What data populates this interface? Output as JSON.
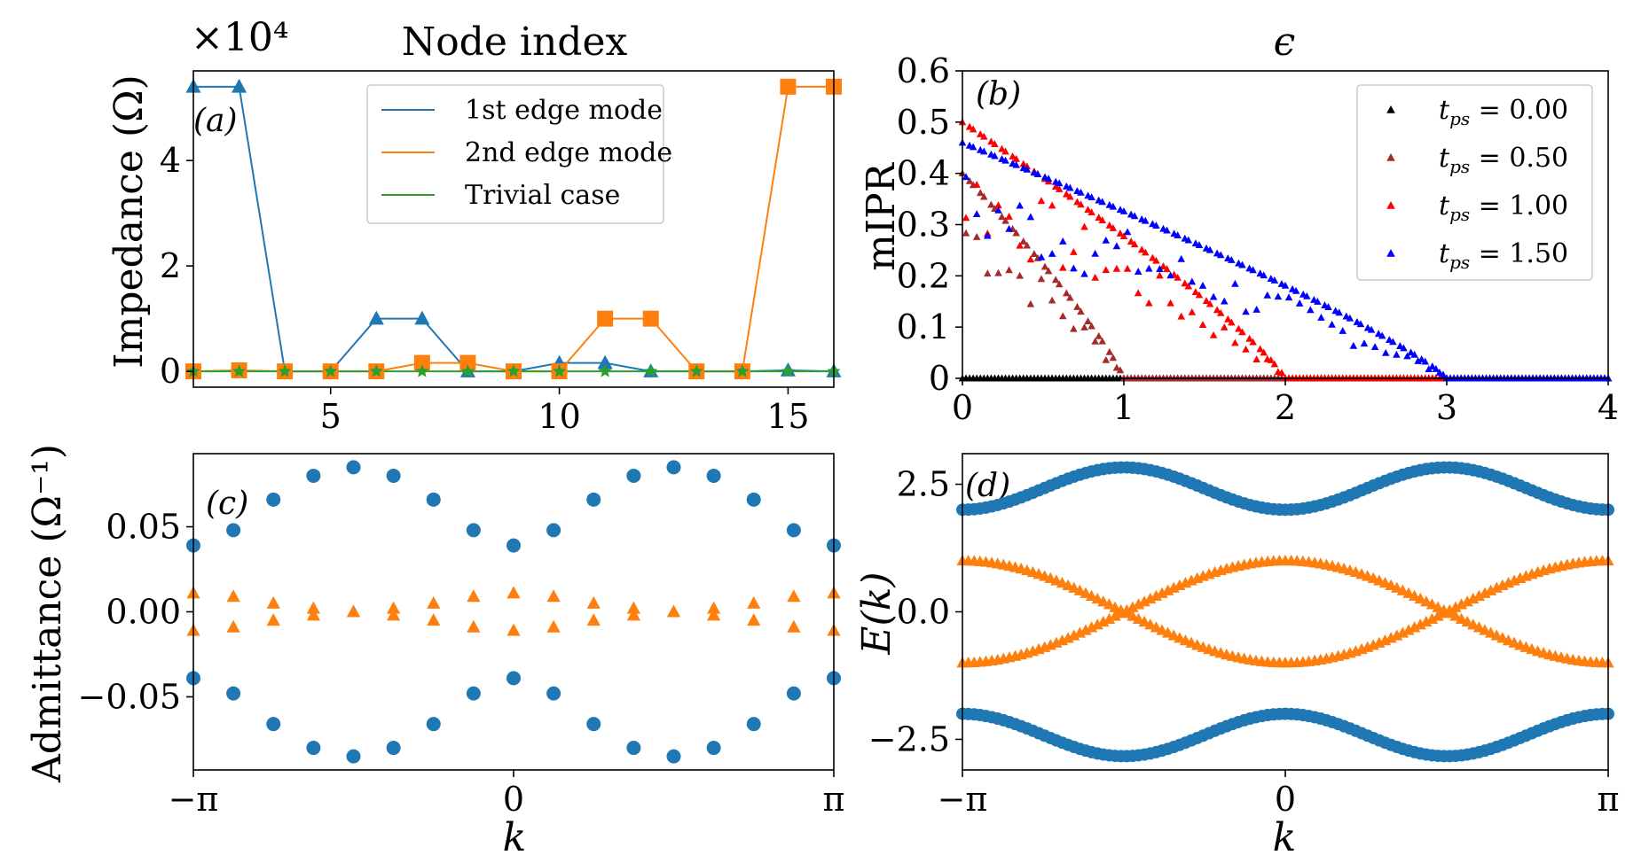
{
  "colors": {
    "blue": "#1f77b4",
    "orange": "#ff7f0e",
    "green": "#2ca02c",
    "black": "#000000",
    "brown": "#a52a2a",
    "red": "#ff0000",
    "pureblue": "#0000ff"
  },
  "chart_data": [
    {
      "panel": "a",
      "type": "line",
      "title": "",
      "xlabel": "Node index",
      "ylabel": "Impedance (Ω)",
      "offset_text": "×10⁴",
      "label": "(a)",
      "xlim": [
        2,
        16
      ],
      "ylim": [
        -0.3,
        5.7
      ],
      "scale": 10000,
      "xticks": [
        "5",
        "10",
        "15"
      ],
      "yticks": [
        "0",
        "2",
        "4"
      ],
      "legend_position": "upper center",
      "x": [
        2,
        3,
        4,
        5,
        6,
        7,
        8,
        9,
        10,
        11,
        12,
        13,
        14,
        15,
        16
      ],
      "series": [
        {
          "name": "1st edge mode",
          "color": "#1f77b4",
          "marker": "triangle",
          "values": [
            5.4,
            5.4,
            0.0,
            0.0,
            1.0,
            1.0,
            0.0,
            0.0,
            0.16,
            0.16,
            0.0,
            0.0,
            0.0,
            0.02,
            0.0
          ]
        },
        {
          "name": "2nd edge mode",
          "color": "#ff7f0e",
          "marker": "square",
          "values": [
            0.0,
            0.02,
            0.0,
            0.0,
            0.0,
            0.16,
            0.16,
            0.0,
            0.0,
            1.0,
            1.0,
            0.0,
            0.0,
            5.4,
            5.4
          ]
        },
        {
          "name": "Trivial case",
          "color": "#2ca02c",
          "marker": "star",
          "values": [
            0.0,
            0.0,
            0.0,
            0.0,
            0.0,
            0.0,
            0.0,
            0.0,
            0.0,
            0.0,
            0.0,
            0.0,
            0.0,
            0.0,
            0.0
          ]
        }
      ]
    },
    {
      "panel": "b",
      "type": "scatter",
      "title": "ϵ",
      "xlabel": "ϵ",
      "ylabel": "mIPR",
      "label": "(b)",
      "xlim": [
        0,
        4
      ],
      "ylim": [
        0,
        0.6
      ],
      "xticks": [
        "0",
        "1",
        "2",
        "3",
        "4"
      ],
      "yticks": [
        "0",
        "0.1",
        "0.2",
        "0.3",
        "0.4",
        "0.5",
        "0.6"
      ],
      "legend_position": "upper right",
      "series": [
        {
          "name": "t_ps = 0.00",
          "legend_sym": "t",
          "legend_sub": "ps",
          "legend_val": "= 0.00",
          "color": "#000000",
          "tps": 0.0,
          "peak": 0.0
        },
        {
          "name": "t_ps = 0.50",
          "legend_sym": "t",
          "legend_sub": "ps",
          "legend_val": "= 0.50",
          "color": "#a52a2a",
          "tps": 0.5,
          "peak": 0.4
        },
        {
          "name": "t_ps = 1.00",
          "legend_sym": "t",
          "legend_sub": "ps",
          "legend_val": "= 1.00",
          "color": "#ff0000",
          "tps": 1.0,
          "peak": 0.5
        },
        {
          "name": "t_ps = 1.50",
          "legend_sym": "t",
          "legend_sub": "ps",
          "legend_val": "= 1.50",
          "color": "#0000ff",
          "tps": 1.5,
          "peak": 0.46
        }
      ]
    },
    {
      "panel": "c",
      "type": "scatter",
      "title": "",
      "xlabel": "k",
      "ylabel": "Admittance (Ω⁻¹)",
      "label": "(c)",
      "xlim": [
        -3.14159,
        3.14159
      ],
      "ylim": [
        -0.093,
        0.093
      ],
      "xticks": [
        "−π",
        "0",
        "π"
      ],
      "yticks": [
        "0.05",
        "0.00",
        "−0.05"
      ],
      "k_points": 17,
      "series": [
        {
          "name": "",
          "color": "#1f77b4",
          "marker": "circle",
          "upper": [
            0.039,
            0.048,
            0.066,
            0.08,
            0.085,
            0.08,
            0.066,
            0.048,
            0.039,
            0.048,
            0.066,
            0.08,
            0.085,
            0.08,
            0.066,
            0.048,
            0.039
          ]
        },
        {
          "name": "",
          "color": "#ff7f0e",
          "marker": "triangle",
          "upper": [
            0.011,
            0.009,
            0.005,
            0.002,
            0.0,
            0.002,
            0.005,
            0.009,
            0.011,
            0.009,
            0.005,
            0.002,
            0.0,
            0.002,
            0.005,
            0.009,
            0.011
          ]
        }
      ]
    },
    {
      "panel": "d",
      "type": "scatter",
      "title": "",
      "xlabel": "k",
      "ylabel": "E(k)",
      "label": "(d)",
      "xlim": [
        -3.14159,
        3.14159
      ],
      "ylim": [
        -3.1,
        3.1
      ],
      "xticks": [
        "−π",
        "0",
        "π"
      ],
      "yticks": [
        "2.5",
        "0.0",
        "−2.5"
      ],
      "series": [
        {
          "name": "",
          "color": "#1f77b4",
          "marker": "circle",
          "band": "outer",
          "min": 2.0,
          "max": 2.83
        },
        {
          "name": "",
          "color": "#ff7f0e",
          "marker": "triangle",
          "band": "inner",
          "amplitude": 1.0
        }
      ]
    }
  ]
}
